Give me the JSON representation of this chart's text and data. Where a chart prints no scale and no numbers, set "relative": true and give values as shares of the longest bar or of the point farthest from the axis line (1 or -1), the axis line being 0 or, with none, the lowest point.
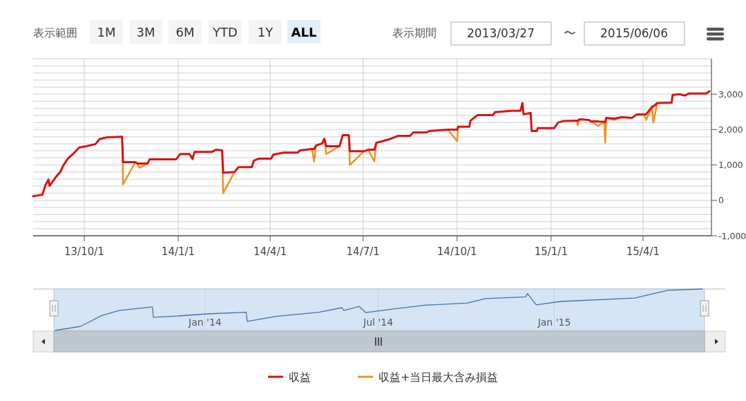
{
  "chart_data": [
    {
      "type": "line",
      "annotations": [
        "表示範囲",
        "1M",
        "3M",
        "6M",
        "YTD",
        "1Y",
        "ALL",
        "表示期間",
        "2013/03/27",
        "〜",
        "2015/06/06"
      ],
      "xlim": [
        "2013-08-12",
        "2015-06-07"
      ],
      "xticks": [
        {
          "value": "2013-10-01",
          "label": "13/10/1"
        },
        {
          "value": "2014-01-01",
          "label": "14/1/1"
        },
        {
          "value": "2014-04-01",
          "label": "14/4/1"
        },
        {
          "value": "2014-07-01",
          "label": "14/7/1"
        },
        {
          "value": "2014-10-01",
          "label": "14/10/1"
        },
        {
          "value": "2015-01-01",
          "label": "15/1/1"
        },
        {
          "value": "2015-04-01",
          "label": "15/4/1"
        }
      ],
      "ylim": [
        -1000,
        4000
      ],
      "yticks": [
        {
          "value": -1000,
          "label": "-1,000"
        },
        {
          "value": -800,
          "label": null
        },
        {
          "value": -600,
          "label": null
        },
        {
          "value": -400,
          "label": null
        },
        {
          "value": -200,
          "label": null
        },
        0,
        {
          "value": 200,
          "label": null
        },
        {
          "value": 400,
          "label": null
        },
        {
          "value": 600,
          "label": null
        },
        {
          "value": 800,
          "label": null
        },
        {
          "value": 1000,
          "label": "1,000"
        },
        {
          "value": 1200,
          "label": null
        },
        {
          "value": 1400,
          "label": null
        },
        {
          "value": 1600,
          "label": null
        },
        {
          "value": 1800,
          "label": null
        },
        {
          "value": 2000,
          "label": "2,000"
        },
        {
          "value": 2200,
          "label": null
        },
        {
          "value": 2400,
          "label": null
        },
        {
          "value": 2600,
          "label": null
        },
        {
          "value": 2800,
          "label": null
        },
        {
          "value": 3000,
          "label": "3,000"
        },
        {
          "value": 3200,
          "label": null
        },
        {
          "value": 3400,
          "label": null
        },
        {
          "value": 3600,
          "label": null
        },
        {
          "value": 3800,
          "label": null
        },
        {
          "value": 4000,
          "label": null
        }
      ],
      "grid": true,
      "legend": "bottom",
      "x": [
        "2013-08-12",
        "2013-08-21",
        "2013-08-24",
        "2013-08-27",
        "2013-08-28",
        "2013-09-03",
        "2013-09-08",
        "2013-09-10",
        "2013-09-15",
        "2013-09-20",
        "2013-09-26",
        "2013-10-03",
        "2013-10-12",
        "2013-10-16",
        "2013-10-23",
        "2013-11-07",
        "2013-11-08",
        "2013-11-20",
        "2013-11-22",
        "2013-11-24",
        "2013-12-02",
        "2013-12-04",
        "2013-12-30",
        "2014-01-03",
        "2014-01-12",
        "2014-01-15",
        "2014-01-17",
        "2014-02-03",
        "2014-02-07",
        "2014-02-13",
        "2014-02-14",
        "2014-02-25",
        "2014-03-01",
        "2014-03-14",
        "2014-03-16",
        "2014-03-21",
        "2014-04-02",
        "2014-04-04",
        "2014-04-14",
        "2014-04-28",
        "2014-04-30",
        "2014-05-12",
        "2014-05-14",
        "2014-05-16",
        "2014-05-22",
        "2014-05-24",
        "2014-05-26",
        "2014-06-08",
        "2014-06-11",
        "2014-06-17",
        "2014-06-18",
        "2014-07-02",
        "2014-07-06",
        "2014-07-12",
        "2014-07-14",
        "2014-07-20",
        "2014-07-28",
        "2014-08-04",
        "2014-08-16",
        "2014-08-19",
        "2014-09-01",
        "2014-09-04",
        "2014-09-22",
        "2014-10-01",
        "2014-10-02",
        "2014-10-13",
        "2014-10-14",
        "2014-10-21",
        "2014-11-05",
        "2014-11-07",
        "2014-11-23",
        "2014-12-02",
        "2014-12-04",
        "2014-12-05",
        "2014-12-12",
        "2014-12-13",
        "2014-12-18",
        "2014-12-19",
        "2015-01-04",
        "2015-01-08",
        "2015-01-13",
        "2015-01-26",
        "2015-01-27",
        "2015-01-29",
        "2015-02-07",
        "2015-02-09",
        "2015-02-16",
        "2015-02-22",
        "2015-02-23",
        "2015-02-24",
        "2015-03-04",
        "2015-03-11",
        "2015-03-21",
        "2015-03-26",
        "2015-04-02",
        "2015-04-04",
        "2015-04-10",
        "2015-04-11",
        "2015-04-15",
        "2015-04-29",
        "2015-04-30",
        "2015-05-07",
        "2015-05-12",
        "2015-05-16",
        "2015-06-02",
        "2015-06-05"
      ],
      "series": [
        {
          "name": "収益+当日最大含み損益",
          "color": "#f0901e",
          "values": [
            null,
            null,
            null,
            null,
            null,
            null,
            null,
            null,
            null,
            null,
            null,
            null,
            null,
            null,
            null,
            1800,
            450,
            1080,
            1040,
            920,
            1040,
            null,
            null,
            null,
            1310,
            1150,
            1370,
            null,
            null,
            1410,
            200,
            800,
            null,
            null,
            null,
            null,
            null,
            null,
            null,
            null,
            null,
            1450,
            1100,
            1550,
            null,
            1740,
            1310,
            1530,
            null,
            1840,
            1000,
            1390,
            1430,
            1100,
            1630,
            null,
            null,
            null,
            null,
            null,
            null,
            null,
            2000,
            1670,
            2080,
            null,
            null,
            null,
            null,
            null,
            null,
            null,
            null,
            null,
            null,
            null,
            null,
            null,
            null,
            null,
            null,
            2250,
            2120,
            2290,
            null,
            2230,
            2100,
            2220,
            1630,
            2330,
            2270,
            2350,
            null,
            null,
            2430,
            2270,
            2650,
            2200,
            2750,
            null,
            null,
            null,
            null,
            null,
            null,
            null
          ]
        },
        {
          "name": "収益",
          "color": "#dd1111",
          "values": [
            120,
            160,
            430,
            590,
            410,
            650,
            820,
            960,
            1180,
            1310,
            1490,
            1530,
            1590,
            1730,
            1780,
            1800,
            1080,
            1080,
            1040,
            1040,
            1040,
            1160,
            1160,
            1310,
            1310,
            1180,
            1370,
            1370,
            1430,
            1410,
            780,
            800,
            940,
            940,
            1120,
            1180,
            1180,
            1290,
            1350,
            1350,
            1410,
            1450,
            1450,
            1550,
            1610,
            1740,
            1530,
            1530,
            1840,
            1840,
            1390,
            1390,
            1430,
            1430,
            1630,
            1670,
            1740,
            1820,
            1820,
            1920,
            1920,
            1960,
            2000,
            2000,
            2080,
            2080,
            2250,
            2410,
            2410,
            2490,
            2530,
            2530,
            2750,
            2430,
            2470,
            1960,
            1960,
            2040,
            2040,
            2200,
            2240,
            2250,
            2250,
            2290,
            2270,
            2230,
            2230,
            2220,
            2220,
            2330,
            2310,
            2350,
            2330,
            2430,
            2430,
            2430,
            2650,
            2650,
            2750,
            2760,
            2980,
            3000,
            2960,
            3020,
            3020,
            3080
          ]
        }
      ]
    },
    {
      "type": "line",
      "relative": true,
      "tick_labels": "x",
      "xlim": [
        "2013-07-27",
        "2015-06-07"
      ],
      "xticks": [
        {
          "value": "2014-01-01",
          "label": "Jan '14"
        },
        {
          "value": "2014-07-01",
          "label": "Jul '14"
        },
        {
          "value": "2015-01-01",
          "label": "Jan '15"
        }
      ],
      "grid": "x",
      "x": [
        "2013-07-28",
        "2013-08-24",
        "2013-09-15",
        "2013-10-03",
        "2013-11-07",
        "2013-11-08",
        "2013-12-04",
        "2014-01-03",
        "2014-02-13",
        "2014-02-14",
        "2014-03-16",
        "2014-04-30",
        "2014-05-24",
        "2014-05-26",
        "2014-06-11",
        "2014-06-18",
        "2014-07-14",
        "2014-08-19",
        "2014-10-02",
        "2014-10-21",
        "2014-12-02",
        "2014-12-04",
        "2014-12-13",
        "2015-01-08",
        "2015-03-26",
        "2015-04-15",
        "2015-04-30",
        "2015-06-05"
      ],
      "series": [
        {
          "color": "#4572a7",
          "values": [
            0,
            0.1,
            0.36,
            0.48,
            0.57,
            0.32,
            0.35,
            0.4,
            0.44,
            0.22,
            0.34,
            0.44,
            0.55,
            0.48,
            0.58,
            0.43,
            0.51,
            0.61,
            0.66,
            0.77,
            0.81,
            0.89,
            0.62,
            0.7,
            0.78,
            0.89,
            0.97,
            1
          ]
        }
      ]
    }
  ]
}
